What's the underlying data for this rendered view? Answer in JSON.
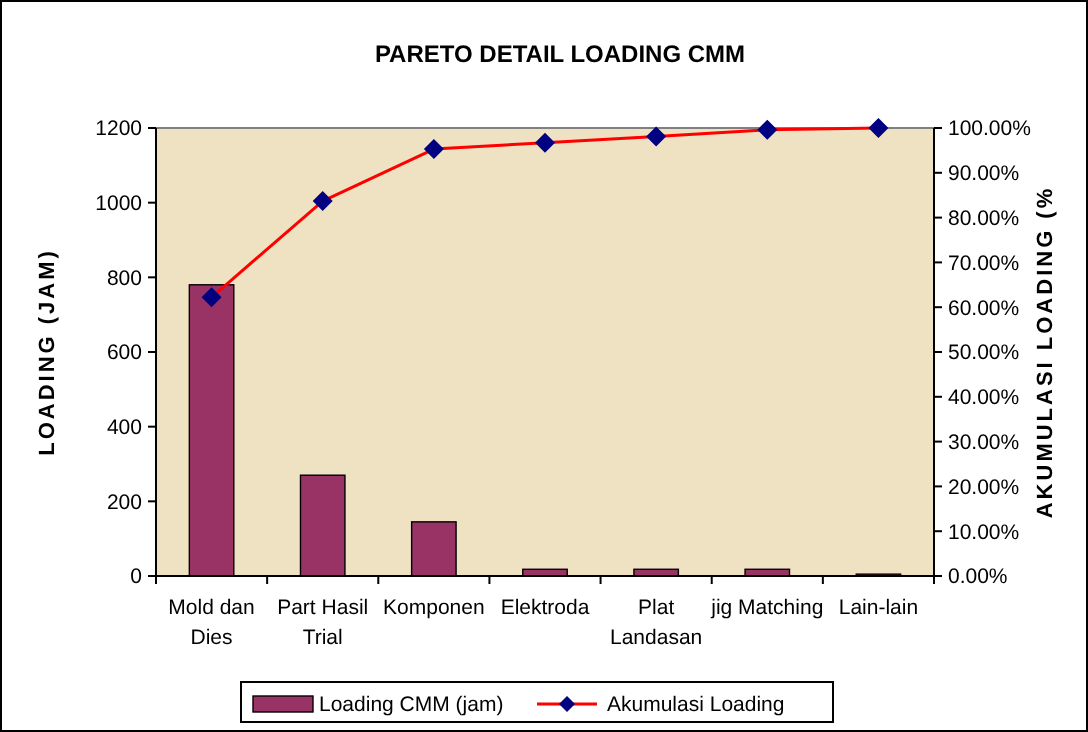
{
  "chart_data": {
    "type": "bar",
    "title": "PARETO DETAIL LOADING CMM",
    "ylabel": "LOADING (JAM)",
    "y2label": "AKUMULASI LOADING (%",
    "categories": [
      "Mold dan Dies",
      "Part Hasil Trial",
      "Komponen",
      "Elektroda",
      "Plat Landasan",
      "jig Matching",
      "Lain-lain"
    ],
    "series": [
      {
        "name": "Loading CMM (jam)",
        "color": "#993366",
        "values": [
          780,
          270,
          145,
          18,
          18,
          18,
          5
        ]
      },
      {
        "name": "Akumulasi Loading",
        "type": "line",
        "axis": "y2",
        "color": "#ff0000",
        "marker": "diamond",
        "values": [
          62.2,
          83.7,
          95.3,
          96.7,
          98.1,
          99.6,
          100
        ]
      }
    ],
    "ylim": [
      0,
      1200
    ],
    "yticks": [
      0,
      200,
      400,
      600,
      800,
      1000,
      1200
    ],
    "y2lim": [
      0,
      100
    ],
    "y2ticks": [
      {
        "value": 0,
        "label": "0.00%"
      },
      {
        "value": 10,
        "label": "10.00%"
      },
      {
        "value": 20,
        "label": "20.00%"
      },
      {
        "value": 30,
        "label": "30.00%"
      },
      {
        "value": 40,
        "label": "40.00%"
      },
      {
        "value": 50,
        "label": "50.00%"
      },
      {
        "value": 60,
        "label": "60.00%"
      },
      {
        "value": 70,
        "label": "70.00%"
      },
      {
        "value": 80,
        "label": "80.00%"
      },
      {
        "value": 90,
        "label": "90.00%"
      },
      {
        "value": 100,
        "label": "100.00%"
      }
    ],
    "legend": "bottom",
    "grid": false
  }
}
